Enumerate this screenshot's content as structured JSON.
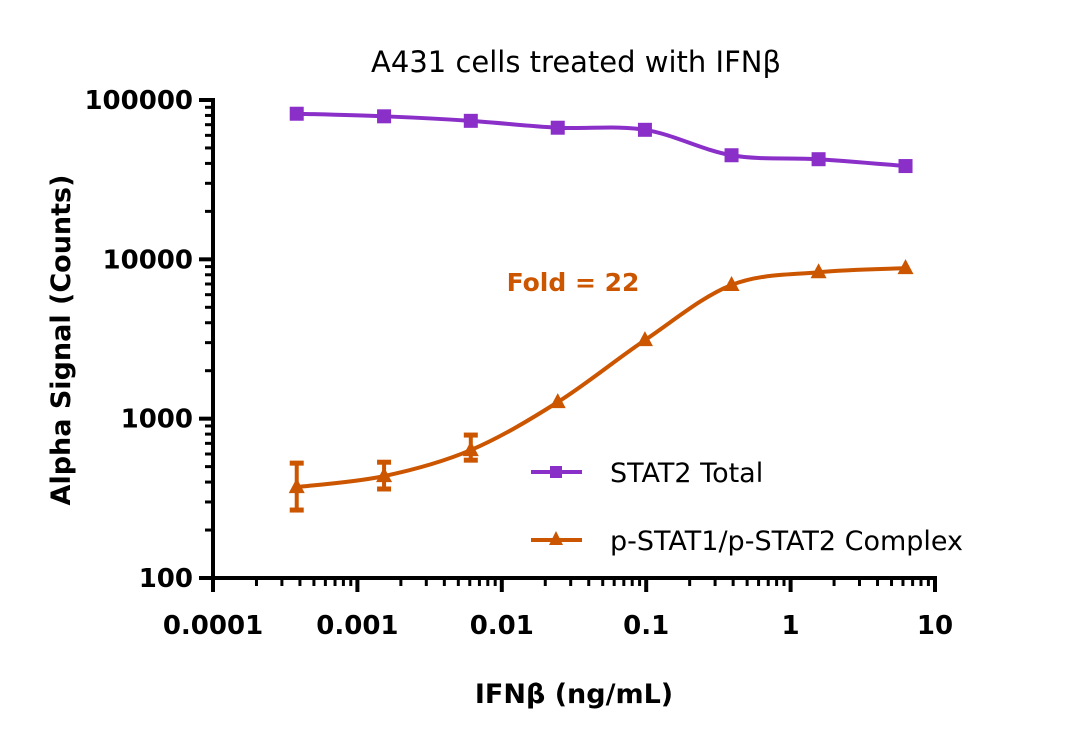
{
  "chart_data": {
    "type": "scatter",
    "title": "A431 cells treated with IFNβ",
    "xlabel": "IFNβ (ng/mL)",
    "ylabel": "Alpha Signal (Counts)",
    "xscale": "log",
    "yscale": "log",
    "xlim": [
      0.0001,
      10
    ],
    "ylim": [
      100,
      100000
    ],
    "xticks": [
      0.0001,
      0.001,
      0.01,
      0.1,
      1,
      10
    ],
    "xtick_labels": [
      "0.0001",
      "0.001",
      "0.01",
      "0.1",
      "1",
      "10"
    ],
    "yticks": [
      100,
      1000,
      10000,
      100000
    ],
    "ytick_labels": [
      "100",
      "1000",
      "10000",
      "100000"
    ],
    "grid": false,
    "legend_position": "bottom-right",
    "x": [
      0.00038,
      0.00153,
      0.0061,
      0.0244,
      0.098,
      0.39,
      1.5625,
      6.25
    ],
    "series": [
      {
        "name": "STAT2 Total",
        "marker": "square",
        "color": "#8B2FC9",
        "values": [
          82000,
          79000,
          74000,
          67000,
          65000,
          45000,
          42500,
          38500
        ]
      },
      {
        "name": "p-STAT1/p-STAT2 Complex",
        "marker": "triangle",
        "color": "#CC5500",
        "values": [
          372,
          436,
          635,
          1270,
          3110,
          6900,
          8300,
          8800
        ],
        "error_low": [
          267,
          362,
          549,
          null,
          null,
          null,
          null,
          null
        ],
        "error_high": [
          526,
          533,
          789,
          null,
          null,
          null,
          null,
          null
        ]
      }
    ],
    "annotations": [
      {
        "text": "Fold = 22",
        "color": "#CC5500"
      }
    ]
  }
}
